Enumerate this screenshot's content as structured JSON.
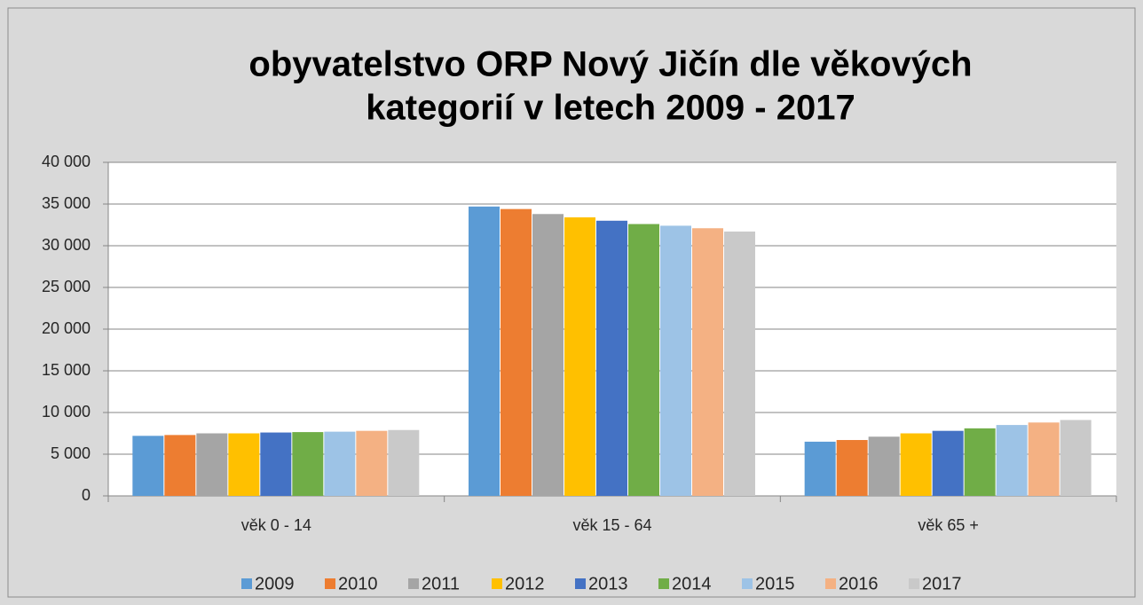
{
  "chart_data": {
    "type": "bar",
    "title": [
      "obyvatelstvo ORP Nový Jičín dle věkových",
      "kategorií v letech 2009 - 2017"
    ],
    "categories": [
      "věk 0 - 14",
      "věk 15 - 64",
      "věk 65 +"
    ],
    "series": [
      {
        "name": "2009",
        "color": "#5b9bd5",
        "values": [
          7200,
          34700,
          6500
        ]
      },
      {
        "name": "2010",
        "color": "#ed7d31",
        "values": [
          7300,
          34400,
          6700
        ]
      },
      {
        "name": "2011",
        "color": "#a5a5a5",
        "values": [
          7500,
          33800,
          7100
        ]
      },
      {
        "name": "2012",
        "color": "#ffc000",
        "values": [
          7500,
          33400,
          7500
        ]
      },
      {
        "name": "2013",
        "color": "#4472c4",
        "values": [
          7600,
          33000,
          7800
        ]
      },
      {
        "name": "2014",
        "color": "#70ad47",
        "values": [
          7650,
          32600,
          8100
        ]
      },
      {
        "name": "2015",
        "color": "#9dc3e6",
        "values": [
          7700,
          32400,
          8500
        ]
      },
      {
        "name": "2016",
        "color": "#f4b183",
        "values": [
          7800,
          32100,
          8800
        ]
      },
      {
        "name": "2017",
        "color": "#c9c9c9",
        "values": [
          7900,
          31700,
          9100
        ]
      }
    ],
    "ylim": [
      0,
      40000
    ],
    "yticks": [
      0,
      {
        "value": 5000,
        "label": "5 000"
      },
      {
        "value": 10000,
        "label": "10 000"
      },
      {
        "value": 15000,
        "label": "15 000"
      },
      {
        "value": 20000,
        "label": "20 000"
      },
      {
        "value": 25000,
        "label": "25 000"
      },
      {
        "value": 30000,
        "label": "30 000"
      },
      {
        "value": 35000,
        "label": "35 000"
      },
      {
        "value": 40000,
        "label": "40 000"
      }
    ],
    "grid": true,
    "legend": "bottom"
  }
}
